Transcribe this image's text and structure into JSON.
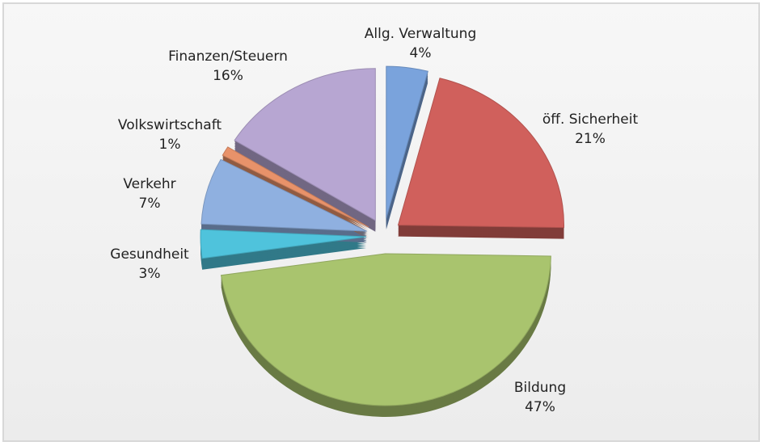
{
  "chart_data": {
    "type": "pie",
    "categories": [
      "Allg. Verwaltung",
      "öff. Sicherheit",
      "Bildung",
      "Gesundheit",
      "Verkehr",
      "Volkswirtschaft",
      "Finanzen/Steuern"
    ],
    "values": [
      4,
      21,
      47,
      3,
      7,
      1,
      16
    ],
    "value_labels": [
      "4%",
      "21%",
      "47%",
      "3%",
      "7%",
      "1%",
      "16%"
    ],
    "colors": [
      "#7aa3dc",
      "#d0605c",
      "#a9c46e",
      "#4fc3dc",
      "#8fb0e0",
      "#e8926a",
      "#b7a6d2"
    ]
  }
}
